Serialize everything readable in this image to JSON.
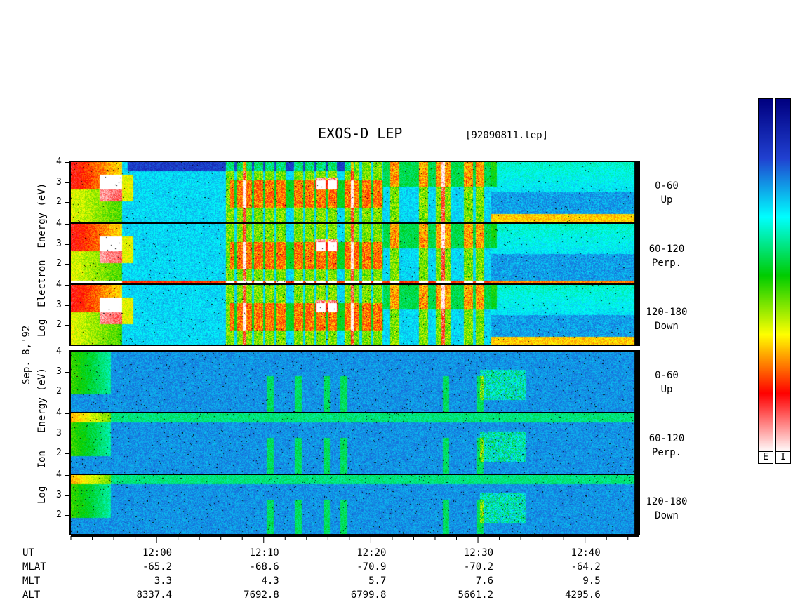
{
  "title": "EXOS-D LEP",
  "file_name": "[92090811.lep]",
  "date_label": "Sep. 8,'92",
  "electron_ylabel": [
    "Log",
    "Electron",
    "Energy",
    "(eV)"
  ],
  "ion_ylabel": [
    "Log",
    "Ion",
    "Energy",
    "(eV)"
  ],
  "pitch_angle_labels": [
    {
      "range": "0-60",
      "dir": "Up"
    },
    {
      "range": "60-120",
      "dir": "Perp."
    },
    {
      "range": "120-180",
      "dir": "Down"
    }
  ],
  "colorbar_labels": [
    "E",
    "I"
  ],
  "bottom_axis": {
    "row_labels": [
      "UT",
      "MLAT",
      "MLT",
      "ALT"
    ],
    "columns": [
      {
        "ut": "12:00",
        "mlat": "-65.2",
        "mlt": "3.3",
        "alt": "8337.4"
      },
      {
        "ut": "12:10",
        "mlat": "-68.6",
        "mlt": "4.3",
        "alt": "7692.8"
      },
      {
        "ut": "12:20",
        "mlat": "-70.9",
        "mlt": "5.7",
        "alt": "6799.8"
      },
      {
        "ut": "12:30",
        "mlat": "-70.2",
        "mlt": "7.6",
        "alt": "5661.2"
      },
      {
        "ut": "12:40",
        "mlat": "-64.2",
        "mlt": "9.5",
        "alt": "4295.6"
      }
    ]
  },
  "chart_data": {
    "type": "heatmap",
    "title": "EXOS-D LEP",
    "x_quantity": "UT",
    "x_range": [
      "11:52",
      "12:45"
    ],
    "ylim": [
      1,
      4
    ],
    "y_ticks": [
      2,
      3,
      4
    ],
    "panels": [
      {
        "species": "Electron",
        "pitch": "0-60",
        "dir": "Up"
      },
      {
        "species": "Electron",
        "pitch": "60-120",
        "dir": "Perp."
      },
      {
        "species": "Electron",
        "pitch": "120-180",
        "dir": "Down"
      },
      {
        "species": "Ion",
        "pitch": "0-60",
        "dir": "Up"
      },
      {
        "species": "Ion",
        "pitch": "60-120",
        "dir": "Perp."
      },
      {
        "species": "Ion",
        "pitch": "120-180",
        "dir": "Down"
      }
    ],
    "colorscale": [
      "#ffffff",
      "#ff0000",
      "#ffff00",
      "#00cc00",
      "#00ffff",
      "#2040d0",
      "#000080"
    ]
  }
}
